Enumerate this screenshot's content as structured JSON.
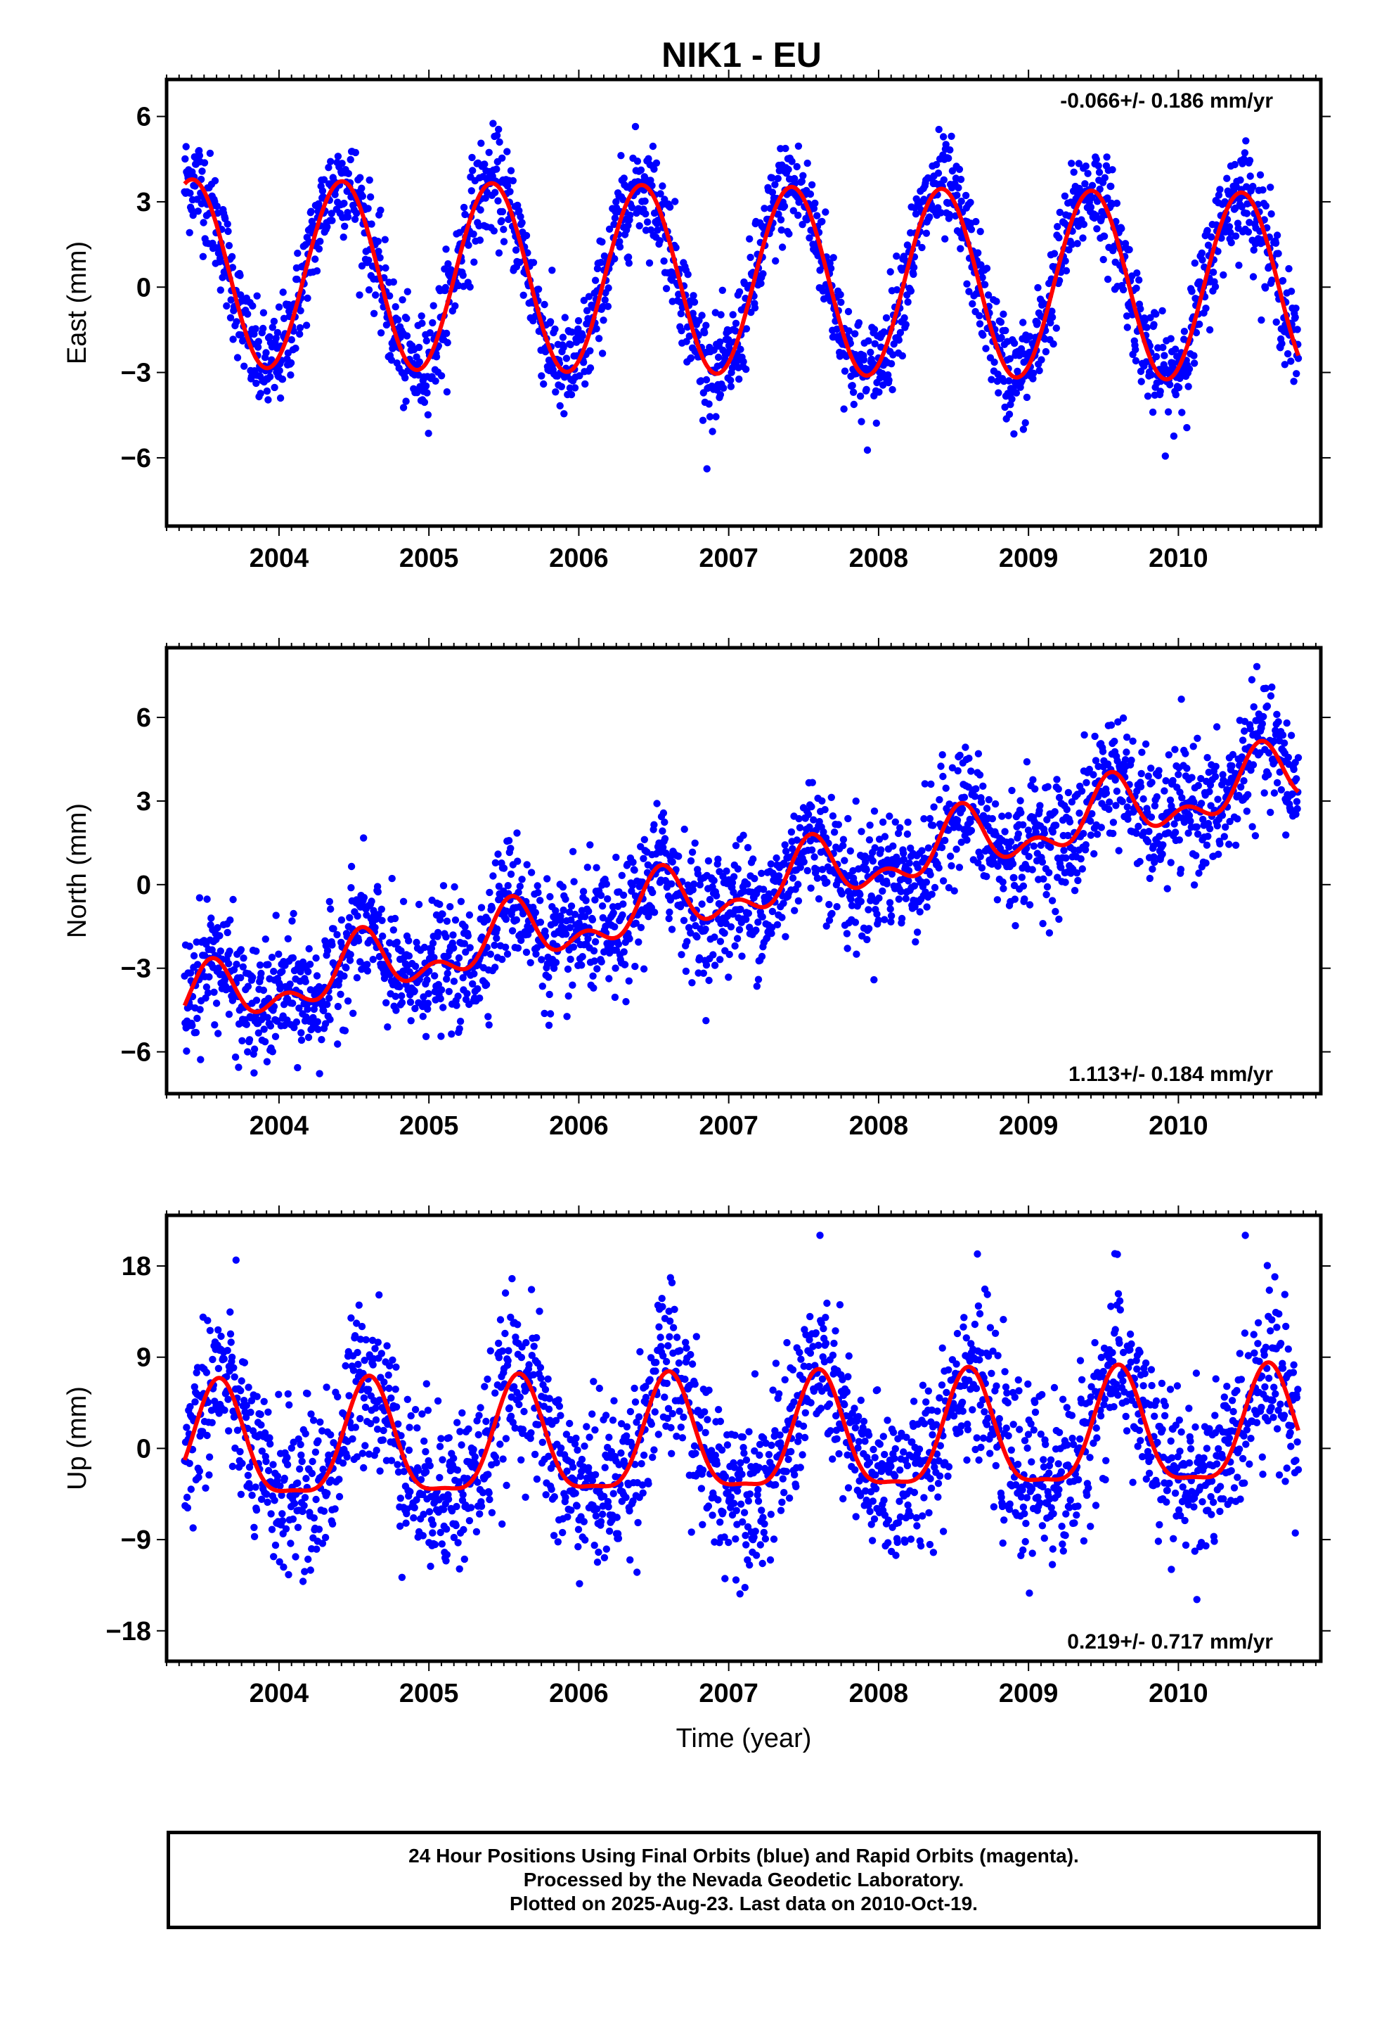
{
  "title": "NIK1 - EU",
  "colors": {
    "final_orbits": "#0000ff",
    "rapid_orbits": "#ff00ff",
    "model": "#ff0000",
    "axis": "#000000"
  },
  "chart_data": [
    {
      "type": "scatter",
      "panel": "east",
      "ylabel": "East (mm)",
      "xlabel": "",
      "xlim": [
        2003.25,
        2010.95
      ],
      "ylim": [
        -8.4,
        7.3
      ],
      "yticks": [
        -6,
        -3,
        0,
        3,
        6
      ],
      "yticklabels": [
        "−6",
        "−3",
        "0",
        "3",
        "6"
      ],
      "xticks": [
        2004,
        2005,
        2006,
        2007,
        2008,
        2009,
        2010
      ],
      "xticklabels": [
        "2004",
        "2005",
        "2006",
        "2007",
        "2008",
        "2009",
        "2010"
      ],
      "rate_label": "-0.066+/- 0.186 mm/yr",
      "rate_label_position": "top-right",
      "data_start": 2003.37,
      "data_end": 2010.8,
      "model": {
        "offset": 0.25,
        "rate": -0.066,
        "annual_amp": 3.3,
        "peak_phase": 0.42,
        "semiannual_amp": 0.0,
        "semiannual_phase": 0.0
      },
      "scatter_sd": 0.9,
      "grid": false
    },
    {
      "type": "scatter",
      "panel": "north",
      "ylabel": "North (mm)",
      "xlabel": "",
      "xlim": [
        2003.25,
        2010.95
      ],
      "ylim": [
        -7.5,
        8.5
      ],
      "yticks": [
        -6,
        -3,
        0,
        3,
        6
      ],
      "yticklabels": [
        "−6",
        "−3",
        "0",
        "3",
        "6"
      ],
      "xticks": [
        2004,
        2005,
        2006,
        2007,
        2008,
        2009,
        2010
      ],
      "xticklabels": [
        "2004",
        "2005",
        "2006",
        "2007",
        "2008",
        "2009",
        "2010"
      ],
      "rate_label": "1.113+/- 0.184 mm/yr",
      "rate_label_position": "bottom-right",
      "data_start": 2003.37,
      "data_end": 2010.8,
      "model": {
        "offset": -0.3,
        "rate": 1.113,
        "annual_amp": 0.9,
        "peak_phase": 0.55,
        "semiannual_amp": 0.6,
        "semiannual_phase": 0.05
      },
      "scatter_sd": 1.1,
      "grid": false
    },
    {
      "type": "scatter",
      "panel": "up",
      "ylabel": "Up (mm)",
      "xlabel": "Time (year)",
      "xlim": [
        2003.25,
        2010.95
      ],
      "ylim": [
        -21,
        23
      ],
      "yticks": [
        -18,
        -9,
        0,
        9,
        18
      ],
      "yticklabels": [
        "−18",
        "−9",
        "0",
        "9",
        "18"
      ],
      "xticks": [
        2004,
        2005,
        2006,
        2007,
        2008,
        2009,
        2010
      ],
      "xticklabels": [
        "2004",
        "2005",
        "2006",
        "2007",
        "2008",
        "2009",
        "2010"
      ],
      "rate_label": "0.219+/- 0.717 mm/yr",
      "rate_label_position": "bottom-right",
      "data_start": 2003.37,
      "data_end": 2010.8,
      "model": {
        "offset": 0.5,
        "rate": 0.219,
        "annual_amp": 5.6,
        "peak_phase": 0.6,
        "semiannual_amp": 1.6,
        "semiannual_phase": 0.1
      },
      "scatter_sd": 4.0,
      "grid": false
    }
  ],
  "footer": {
    "line1": "24 Hour Positions Using Final Orbits (blue) and Rapid Orbits (magenta).",
    "line2": "Processed by the Nevada Geodetic Laboratory.",
    "line3": "Plotted on 2025-Aug-23. Last data on 2010-Oct-19."
  }
}
